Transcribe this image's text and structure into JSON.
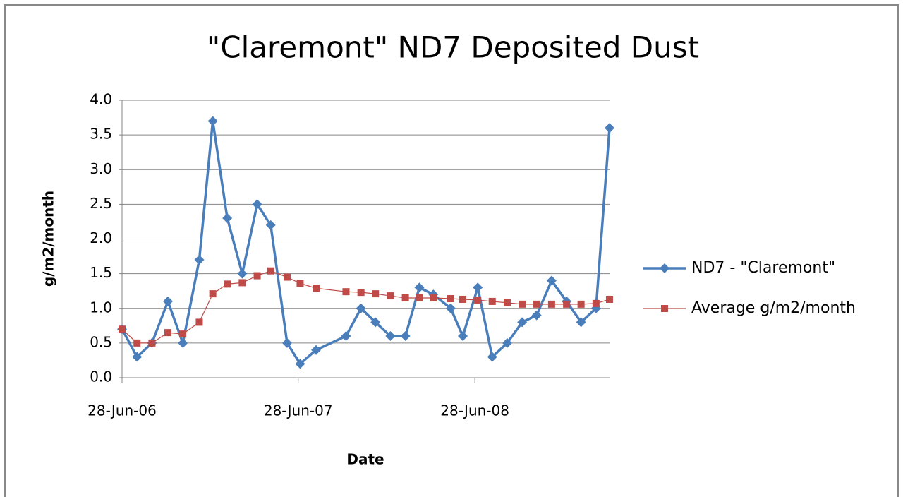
{
  "chart_data": {
    "type": "line",
    "title": "\"Claremont\" ND7 Deposited Dust",
    "x_label": "Date",
    "y_label": "g/m2/month",
    "x": [
      "2006-06-28",
      "2006-07-29",
      "2006-08-29",
      "2006-10-01",
      "2006-11-01",
      "2006-12-05",
      "2007-01-02",
      "2007-02-01",
      "2007-03-04",
      "2007-04-04",
      "2007-05-02",
      "2007-06-05",
      "2007-07-02",
      "2007-08-04",
      "2007-10-05",
      "2007-11-05",
      "2007-12-05",
      "2008-01-05",
      "2008-02-05",
      "2008-03-05",
      "2008-04-03",
      "2008-05-09",
      "2008-06-03",
      "2008-07-04",
      "2008-08-03",
      "2008-09-03",
      "2008-10-04",
      "2008-11-03",
      "2008-12-04",
      "2009-01-04",
      "2009-02-03",
      "2009-03-06",
      "2009-04-03"
    ],
    "series": [
      {
        "name": "ND7 - \"Claremont\"",
        "color": "#4a7ebb",
        "marker": "diamond",
        "values": [
          0.7,
          0.3,
          0.5,
          1.1,
          0.5,
          1.7,
          3.7,
          2.3,
          1.5,
          2.5,
          2.2,
          0.5,
          0.2,
          0.4,
          0.6,
          1.0,
          0.8,
          0.6,
          0.6,
          1.3,
          1.2,
          1.0,
          0.6,
          1.3,
          0.3,
          0.5,
          0.8,
          0.9,
          1.4,
          1.1,
          0.8,
          1.0,
          3.6
        ]
      },
      {
        "name": "Average g/m2/month",
        "color": "#be4b48",
        "marker": "square",
        "values": [
          0.7,
          0.5,
          0.5,
          0.65,
          0.63,
          0.8,
          1.21,
          1.35,
          1.37,
          1.47,
          1.54,
          1.45,
          1.36,
          1.29,
          1.24,
          1.23,
          1.21,
          1.18,
          1.15,
          1.15,
          1.15,
          1.14,
          1.13,
          1.12,
          1.1,
          1.08,
          1.06,
          1.06,
          1.06,
          1.06,
          1.06,
          1.07,
          1.13
        ]
      }
    ],
    "xlim": [
      "2006-06-28",
      "2009-04-03"
    ],
    "xticks": [
      {
        "value": "2006-06-28",
        "label": "28-Jun-06"
      },
      {
        "value": "2007-06-28",
        "label": "28-Jun-07"
      },
      {
        "value": "2008-06-28",
        "label": "28-Jun-08"
      }
    ],
    "ylim": [
      0,
      4
    ],
    "yticks": [
      {
        "value": 0,
        "label": "0.0"
      },
      {
        "value": 0.5,
        "label": "0.5"
      },
      {
        "value": 1,
        "label": "1.0"
      },
      {
        "value": 1.5,
        "label": "1.5"
      },
      {
        "value": 2,
        "label": "2.0"
      },
      {
        "value": 2.5,
        "label": "2.5"
      },
      {
        "value": 3,
        "label": "3.0"
      },
      {
        "value": 3.5,
        "label": "3.5"
      },
      {
        "value": 4,
        "label": "4.0"
      }
    ],
    "grid": true,
    "legend": "right"
  }
}
